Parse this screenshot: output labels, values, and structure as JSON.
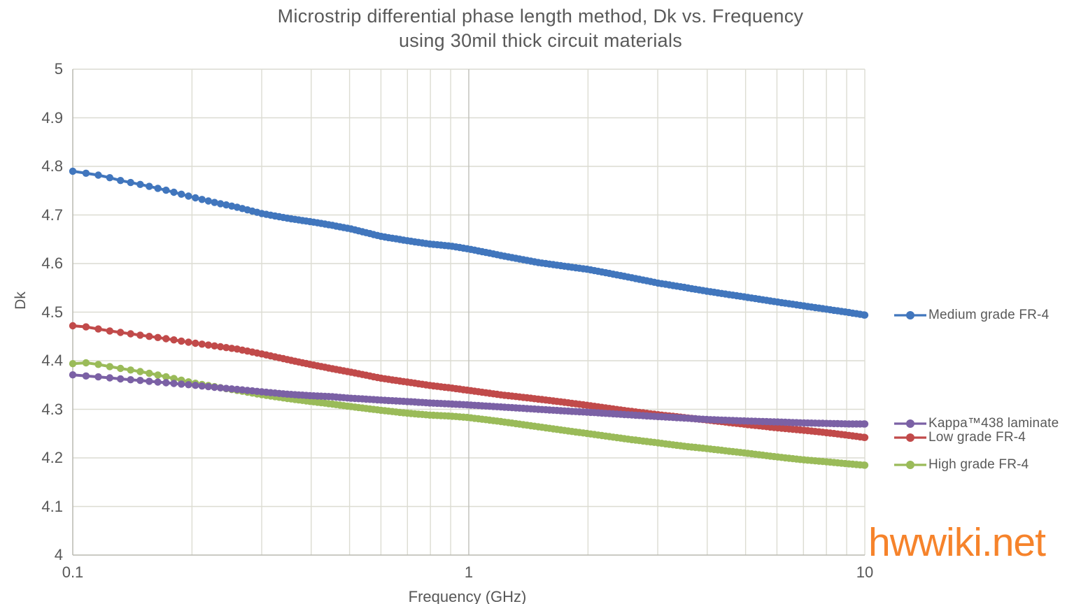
{
  "title": {
    "line1": "Microstrip differential phase length method, Dk vs. Frequency",
    "line2": "using 30mil thick circuit materials"
  },
  "watermark": {
    "text": "hwwiki.net",
    "color": "#F6832B"
  },
  "axes": {
    "x": {
      "title": "Frequency (GHz)",
      "tick_labels": [
        "0.1",
        "1",
        "10"
      ]
    },
    "y": {
      "title": "Dk",
      "tick_labels": [
        "4",
        "4.1",
        "4.2",
        "4.3",
        "4.4",
        "4.5",
        "4.6",
        "4.7",
        "4.8",
        "4.9",
        "5"
      ]
    }
  },
  "colors": {
    "grid": "#DCDCD2",
    "grid_major": "#BFBFB8",
    "axis_line": "#B9B9B1",
    "text_gray": "#595959"
  },
  "chart_data": {
    "type": "line",
    "title": "Microstrip differential phase length method, Dk vs. Frequency using 30mil thick circuit materials",
    "xlabel": "Frequency (GHz)",
    "ylabel": "Dk",
    "x_scale": "log",
    "xlim": [
      0.1,
      10
    ],
    "ylim": [
      4,
      5
    ],
    "grid": true,
    "legend_position": "right-outside, each entry aligned with its curve end",
    "x_ticks_labeled": [
      0.1,
      1,
      10
    ],
    "x_gridlines": [
      0.2,
      0.3,
      0.4,
      0.5,
      0.6,
      0.7,
      0.8,
      0.9,
      1,
      2,
      3,
      4,
      5,
      6,
      7,
      8,
      9,
      10
    ],
    "x_gridline_major": 1,
    "y_gridlines": [
      4.1,
      4.2,
      4.3,
      4.4,
      4.5,
      4.6,
      4.7,
      4.8,
      4.9,
      5
    ],
    "marker": "circle",
    "series": [
      {
        "name": "Medium grade FR-4",
        "color": "#4176BD",
        "points": [
          [
            0.1,
            4.79
          ],
          [
            0.11,
            4.785
          ],
          [
            0.12,
            4.78
          ],
          [
            0.13,
            4.772
          ],
          [
            0.15,
            4.762
          ],
          [
            0.17,
            4.752
          ],
          [
            0.2,
            4.737
          ],
          [
            0.23,
            4.725
          ],
          [
            0.26,
            4.716
          ],
          [
            0.3,
            4.703
          ],
          [
            0.35,
            4.693
          ],
          [
            0.4,
            4.686
          ],
          [
            0.45,
            4.679
          ],
          [
            0.5,
            4.672
          ],
          [
            0.6,
            4.656
          ],
          [
            0.7,
            4.647
          ],
          [
            0.8,
            4.64
          ],
          [
            0.9,
            4.636
          ],
          [
            1.0,
            4.63
          ],
          [
            1.2,
            4.617
          ],
          [
            1.5,
            4.602
          ],
          [
            1.8,
            4.593
          ],
          [
            2.0,
            4.588
          ],
          [
            2.5,
            4.573
          ],
          [
            3.0,
            4.56
          ],
          [
            3.5,
            4.551
          ],
          [
            4.0,
            4.543
          ],
          [
            5.0,
            4.531
          ],
          [
            6.0,
            4.521
          ],
          [
            7.0,
            4.513
          ],
          [
            8.0,
            4.506
          ],
          [
            9.0,
            4.5
          ],
          [
            10.0,
            4.494
          ]
        ]
      },
      {
        "name": "Kappa™438 laminate",
        "color": "#7B61A5",
        "points": [
          [
            0.1,
            4.371
          ],
          [
            0.11,
            4.368
          ],
          [
            0.12,
            4.366
          ],
          [
            0.13,
            4.363
          ],
          [
            0.15,
            4.359
          ],
          [
            0.17,
            4.355
          ],
          [
            0.2,
            4.35
          ],
          [
            0.23,
            4.345
          ],
          [
            0.26,
            4.341
          ],
          [
            0.3,
            4.336
          ],
          [
            0.35,
            4.331
          ],
          [
            0.4,
            4.328
          ],
          [
            0.45,
            4.326
          ],
          [
            0.5,
            4.323
          ],
          [
            0.6,
            4.319
          ],
          [
            0.7,
            4.316
          ],
          [
            0.8,
            4.313
          ],
          [
            0.9,
            4.311
          ],
          [
            1.0,
            4.309
          ],
          [
            1.2,
            4.305
          ],
          [
            1.5,
            4.3
          ],
          [
            1.8,
            4.296
          ],
          [
            2.0,
            4.294
          ],
          [
            2.5,
            4.289
          ],
          [
            3.0,
            4.285
          ],
          [
            3.5,
            4.282
          ],
          [
            4.0,
            4.279
          ],
          [
            5.0,
            4.276
          ],
          [
            6.0,
            4.274
          ],
          [
            7.0,
            4.272
          ],
          [
            8.0,
            4.271
          ],
          [
            9.0,
            4.27
          ],
          [
            10.0,
            4.27
          ]
        ]
      },
      {
        "name": "Low grade FR-4",
        "color": "#C14A4A",
        "points": [
          [
            0.1,
            4.472
          ],
          [
            0.11,
            4.469
          ],
          [
            0.12,
            4.463
          ],
          [
            0.13,
            4.459
          ],
          [
            0.15,
            4.452
          ],
          [
            0.17,
            4.446
          ],
          [
            0.2,
            4.437
          ],
          [
            0.23,
            4.43
          ],
          [
            0.26,
            4.424
          ],
          [
            0.3,
            4.414
          ],
          [
            0.35,
            4.402
          ],
          [
            0.4,
            4.392
          ],
          [
            0.45,
            4.384
          ],
          [
            0.5,
            4.377
          ],
          [
            0.6,
            4.364
          ],
          [
            0.7,
            4.356
          ],
          [
            0.8,
            4.349
          ],
          [
            0.9,
            4.344
          ],
          [
            1.0,
            4.339
          ],
          [
            1.2,
            4.33
          ],
          [
            1.5,
            4.321
          ],
          [
            1.8,
            4.313
          ],
          [
            2.0,
            4.308
          ],
          [
            2.5,
            4.297
          ],
          [
            3.0,
            4.289
          ],
          [
            3.5,
            4.283
          ],
          [
            4.0,
            4.278
          ],
          [
            5.0,
            4.269
          ],
          [
            6.0,
            4.262
          ],
          [
            7.0,
            4.257
          ],
          [
            8.0,
            4.252
          ],
          [
            9.0,
            4.247
          ],
          [
            10.0,
            4.242
          ]
        ]
      },
      {
        "name": "High grade FR-4",
        "color": "#9ABB59",
        "points": [
          [
            0.1,
            4.394
          ],
          [
            0.11,
            4.396
          ],
          [
            0.12,
            4.39
          ],
          [
            0.13,
            4.385
          ],
          [
            0.15,
            4.377
          ],
          [
            0.17,
            4.368
          ],
          [
            0.2,
            4.355
          ],
          [
            0.23,
            4.346
          ],
          [
            0.26,
            4.339
          ],
          [
            0.3,
            4.33
          ],
          [
            0.35,
            4.322
          ],
          [
            0.4,
            4.316
          ],
          [
            0.45,
            4.311
          ],
          [
            0.5,
            4.306
          ],
          [
            0.6,
            4.298
          ],
          [
            0.7,
            4.292
          ],
          [
            0.8,
            4.288
          ],
          [
            0.9,
            4.286
          ],
          [
            1.0,
            4.283
          ],
          [
            1.2,
            4.275
          ],
          [
            1.5,
            4.264
          ],
          [
            1.8,
            4.255
          ],
          [
            2.0,
            4.25
          ],
          [
            2.5,
            4.239
          ],
          [
            3.0,
            4.231
          ],
          [
            3.5,
            4.224
          ],
          [
            4.0,
            4.219
          ],
          [
            5.0,
            4.21
          ],
          [
            6.0,
            4.202
          ],
          [
            7.0,
            4.196
          ],
          [
            8.0,
            4.192
          ],
          [
            9.0,
            4.188
          ],
          [
            10.0,
            4.185
          ]
        ]
      }
    ]
  }
}
